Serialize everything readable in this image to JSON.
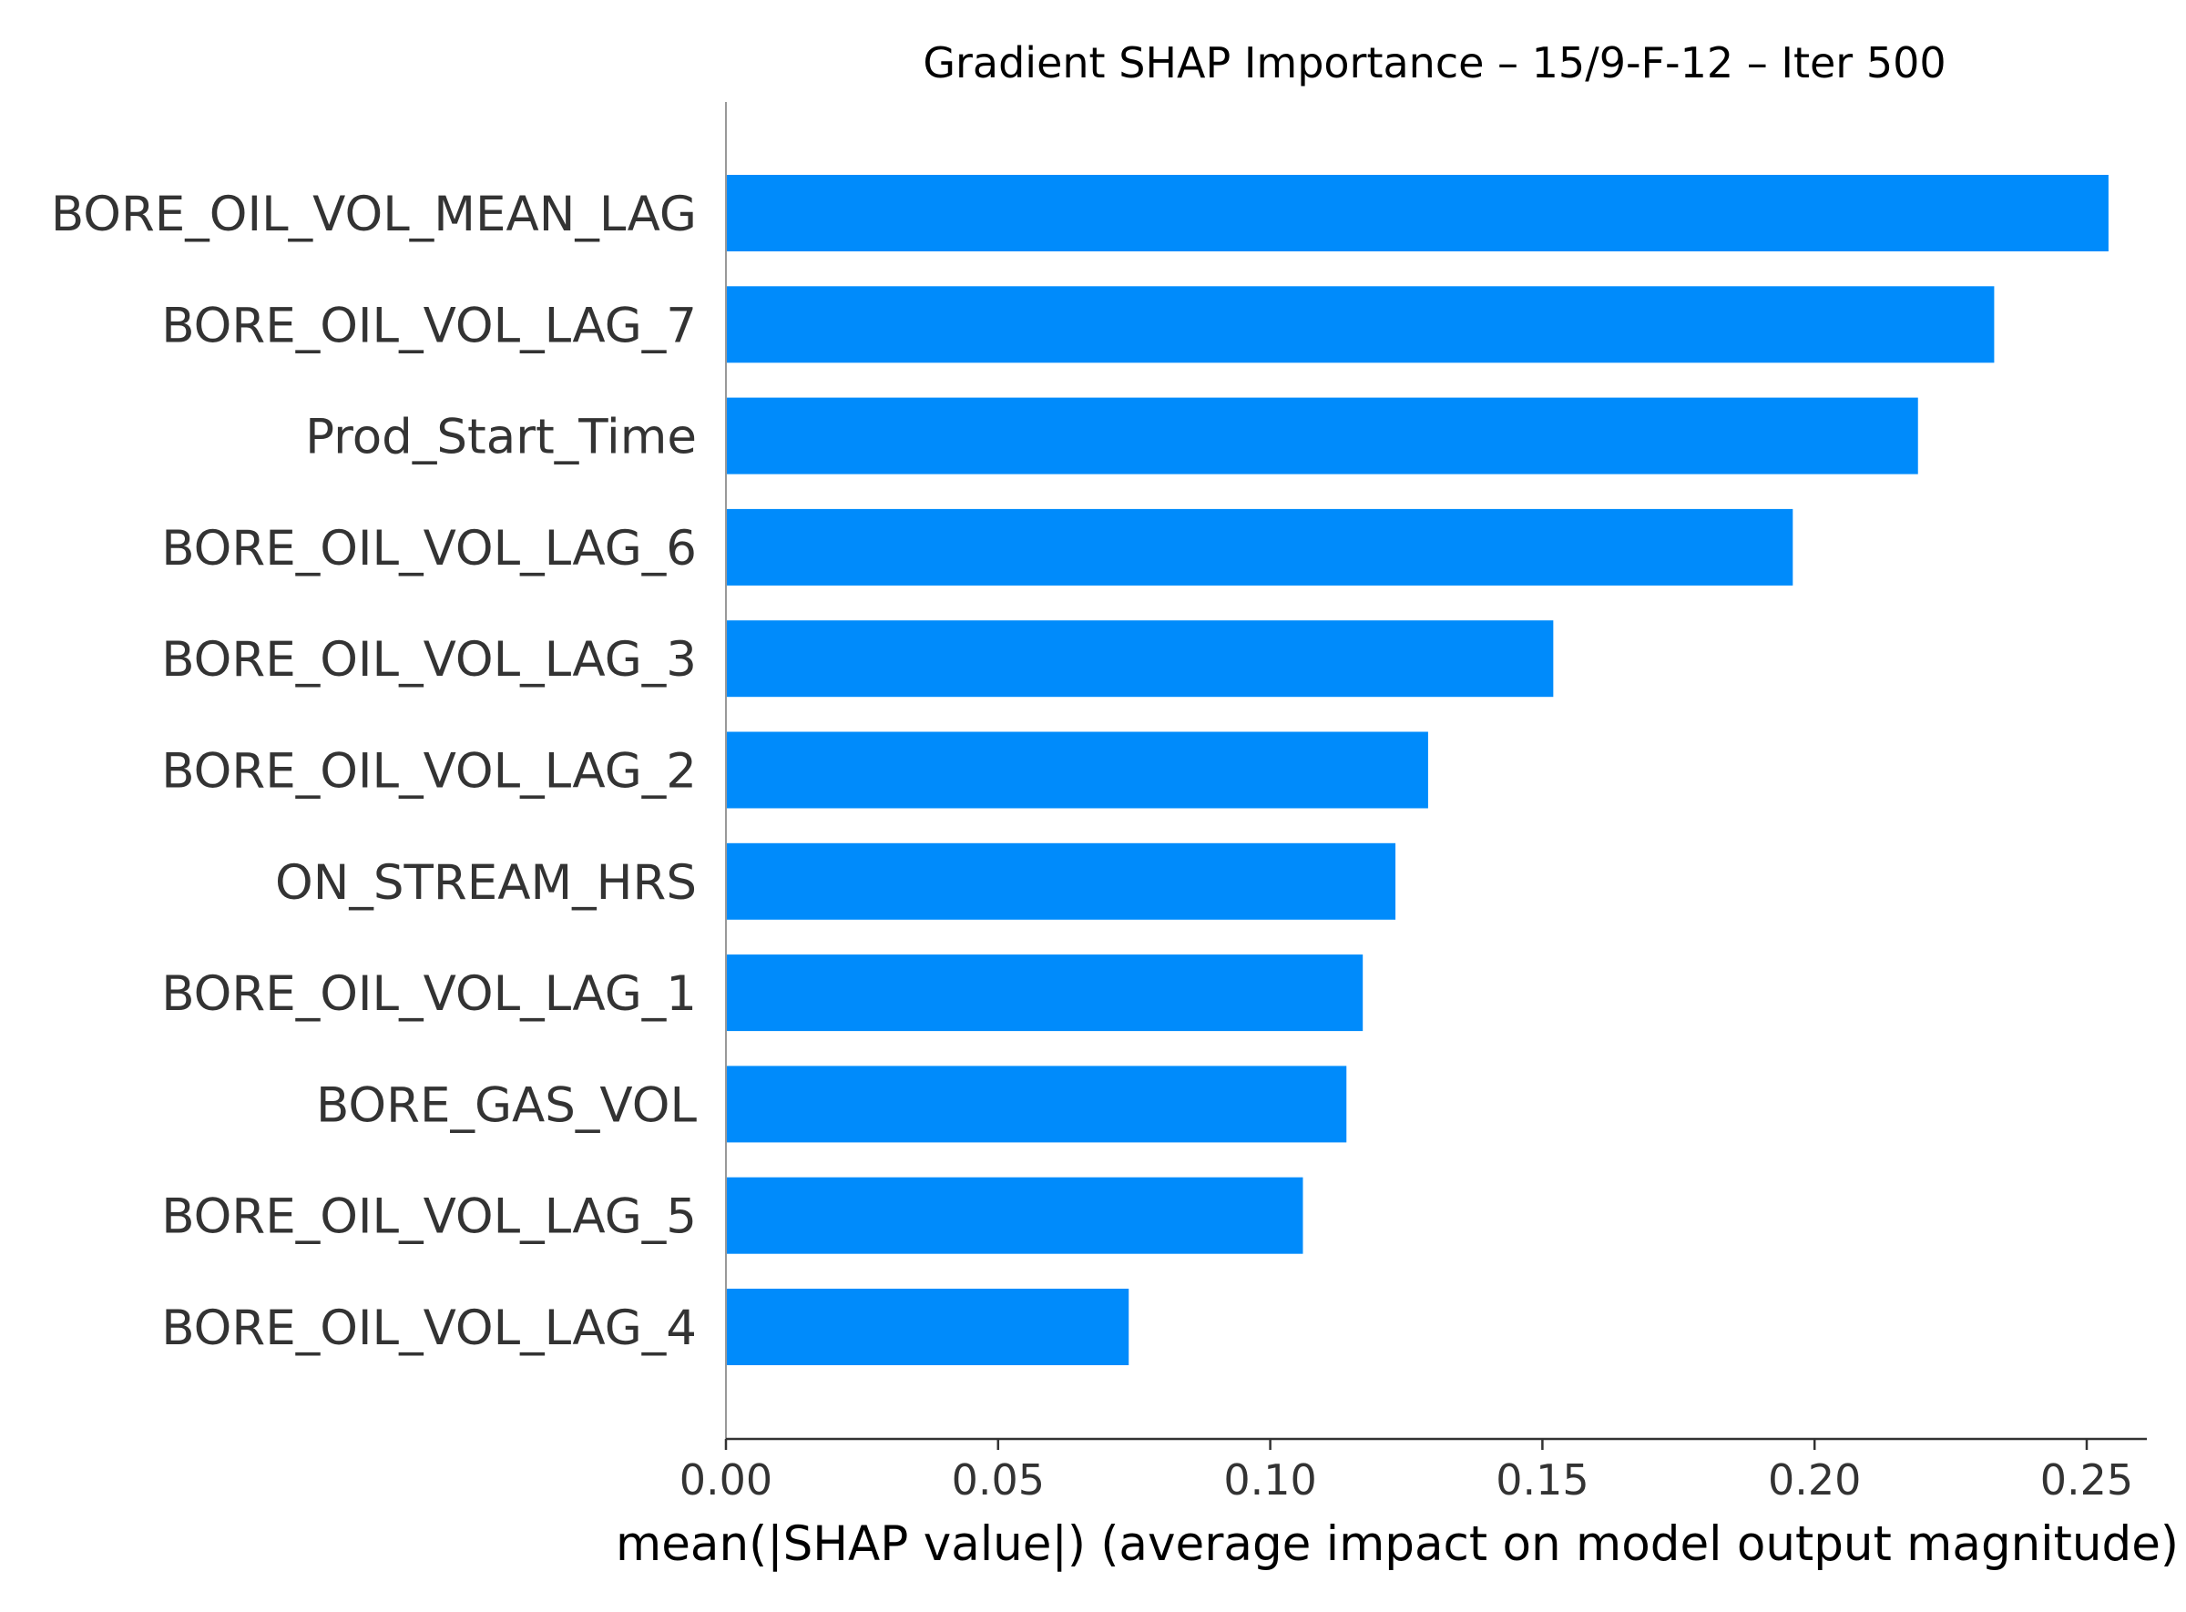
{
  "chart_data": {
    "type": "bar",
    "orientation": "horizontal",
    "title": "Gradient SHAP Importance – 15/9-F-12 – Iter 500",
    "xlabel": "mean(|SHAP value|) (average impact on model output magnitude)",
    "ylabel": "",
    "categories": [
      "BORE_OIL_VOL_MEAN_LAG",
      "BORE_OIL_VOL_LAG_7",
      "Prod_Start_Time",
      "BORE_OIL_VOL_LAG_6",
      "BORE_OIL_VOL_LAG_3",
      "BORE_OIL_VOL_LAG_2",
      "ON_STREAM_HRS",
      "BORE_OIL_VOL_LAG_1",
      "BORE_GAS_VOL",
      "BORE_OIL_VOL_LAG_5",
      "BORE_OIL_VOL_LAG_4"
    ],
    "values": [
      0.254,
      0.233,
      0.219,
      0.196,
      0.152,
      0.129,
      0.123,
      0.117,
      0.114,
      0.106,
      0.074
    ],
    "xlim": [
      0,
      0.267
    ],
    "xticks": [
      "0.00",
      "0.05",
      "0.10",
      "0.15",
      "0.20",
      "0.25"
    ],
    "xtick_values": [
      0,
      0.05,
      0.1,
      0.15,
      0.2,
      0.25
    ],
    "bar_color": "#008bfb",
    "grid": false
  }
}
